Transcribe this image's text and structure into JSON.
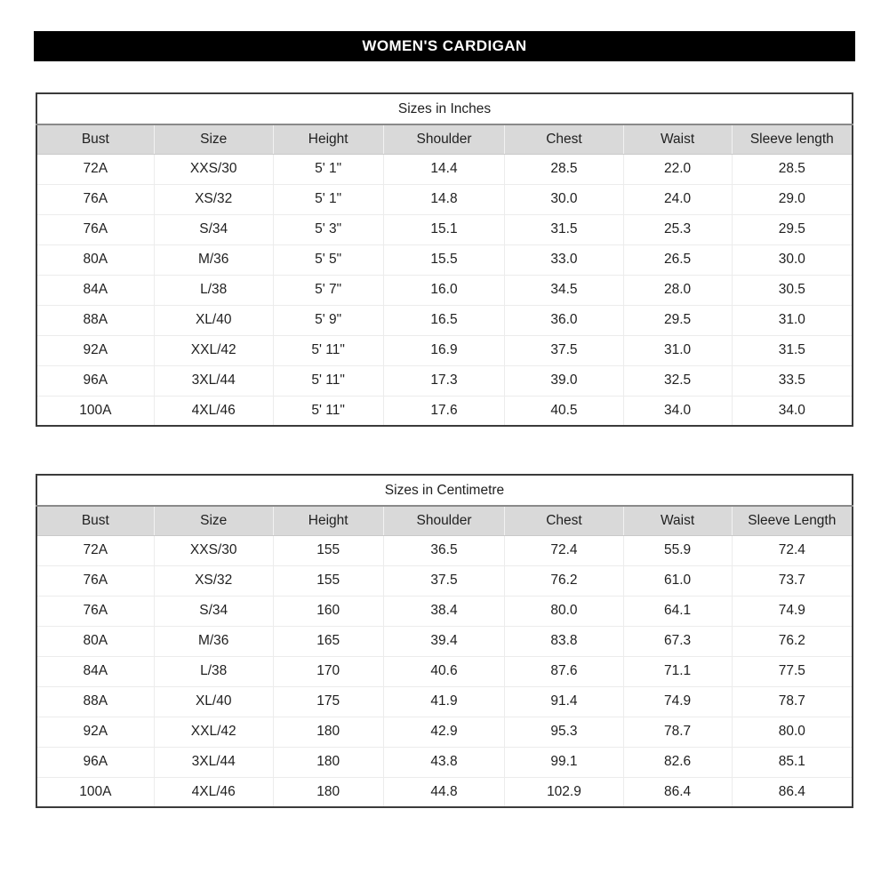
{
  "header": {
    "title": "WOMEN'S CARDIGAN"
  },
  "colors": {
    "title_bar_bg": "#000000",
    "title_bar_text": "#ffffff",
    "header_row_bg": "#d9d9d9",
    "table_border": "#3b3b3b",
    "text": "#1f1f1f"
  },
  "tables": [
    {
      "title": "Sizes in Inches",
      "columns": [
        "Bust",
        "Size",
        "Height",
        "Shoulder",
        "Chest",
        "Waist",
        "Sleeve length"
      ],
      "rows": [
        [
          "72A",
          "XXS/30",
          "5' 1\"",
          "14.4",
          "28.5",
          "22.0",
          "28.5"
        ],
        [
          "76A",
          "XS/32",
          "5' 1\"",
          "14.8",
          "30.0",
          "24.0",
          "29.0"
        ],
        [
          "76A",
          "S/34",
          "5' 3\"",
          "15.1",
          "31.5",
          "25.3",
          "29.5"
        ],
        [
          "80A",
          "M/36",
          "5' 5\"",
          "15.5",
          "33.0",
          "26.5",
          "30.0"
        ],
        [
          "84A",
          "L/38",
          "5' 7\"",
          "16.0",
          "34.5",
          "28.0",
          "30.5"
        ],
        [
          "88A",
          "XL/40",
          "5' 9\"",
          "16.5",
          "36.0",
          "29.5",
          "31.0"
        ],
        [
          "92A",
          "XXL/42",
          "5' 11\"",
          "16.9",
          "37.5",
          "31.0",
          "31.5"
        ],
        [
          "96A",
          "3XL/44",
          "5' 11\"",
          "17.3",
          "39.0",
          "32.5",
          "33.5"
        ],
        [
          "100A",
          "4XL/46",
          "5' 11\"",
          "17.6",
          "40.5",
          "34.0",
          "34.0"
        ]
      ]
    },
    {
      "title": "Sizes in Centimetre",
      "columns": [
        "Bust",
        "Size",
        "Height",
        "Shoulder",
        "Chest",
        "Waist",
        "Sleeve Length"
      ],
      "rows": [
        [
          "72A",
          "XXS/30",
          "155",
          "36.5",
          "72.4",
          "55.9",
          "72.4"
        ],
        [
          "76A",
          "XS/32",
          "155",
          "37.5",
          "76.2",
          "61.0",
          "73.7"
        ],
        [
          "76A",
          "S/34",
          "160",
          "38.4",
          "80.0",
          "64.1",
          "74.9"
        ],
        [
          "80A",
          "M/36",
          "165",
          "39.4",
          "83.8",
          "67.3",
          "76.2"
        ],
        [
          "84A",
          "L/38",
          "170",
          "40.6",
          "87.6",
          "71.1",
          "77.5"
        ],
        [
          "88A",
          "XL/40",
          "175",
          "41.9",
          "91.4",
          "74.9",
          "78.7"
        ],
        [
          "92A",
          "XXL/42",
          "180",
          "42.9",
          "95.3",
          "78.7",
          "80.0"
        ],
        [
          "96A",
          "3XL/44",
          "180",
          "43.8",
          "99.1",
          "82.6",
          "85.1"
        ],
        [
          "100A",
          "4XL/46",
          "180",
          "44.8",
          "102.9",
          "86.4",
          "86.4"
        ]
      ]
    }
  ]
}
